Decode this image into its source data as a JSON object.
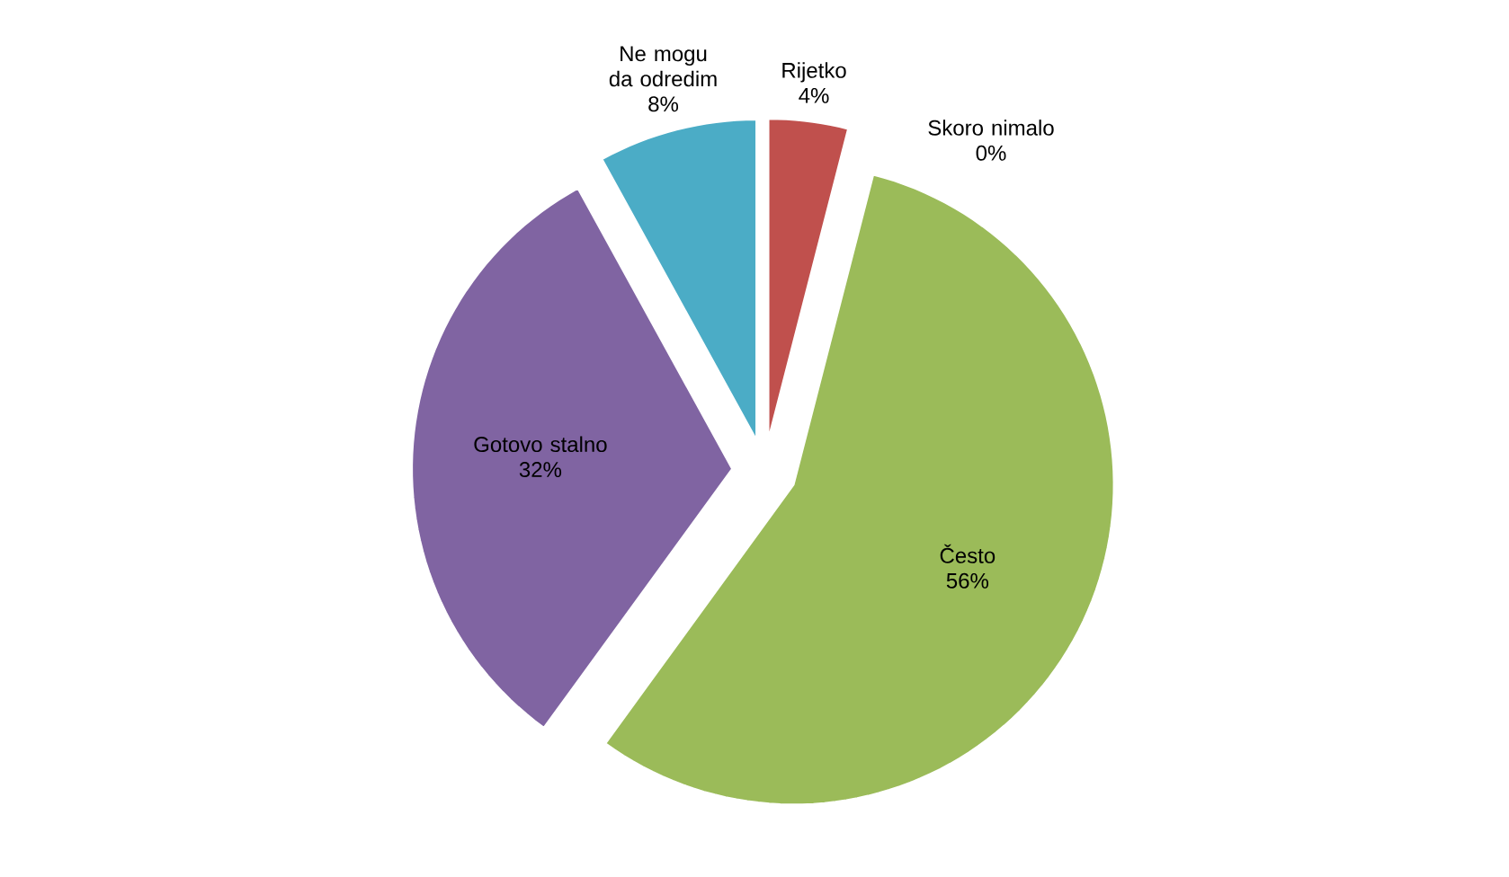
{
  "chart_data": {
    "type": "pie",
    "categories": [
      "Rijetko",
      "Skoro nimalo",
      "Često",
      "Gotovo stalno",
      "Ne mogu da odredim"
    ],
    "values": [
      4,
      0,
      56,
      32,
      8
    ],
    "value_labels": [
      "4%",
      "0%",
      "56%",
      "32%",
      "8%"
    ],
    "colors": [
      "#c0504d",
      "#4f81bd",
      "#9bbb59",
      "#8064a2",
      "#4bacc6"
    ]
  }
}
